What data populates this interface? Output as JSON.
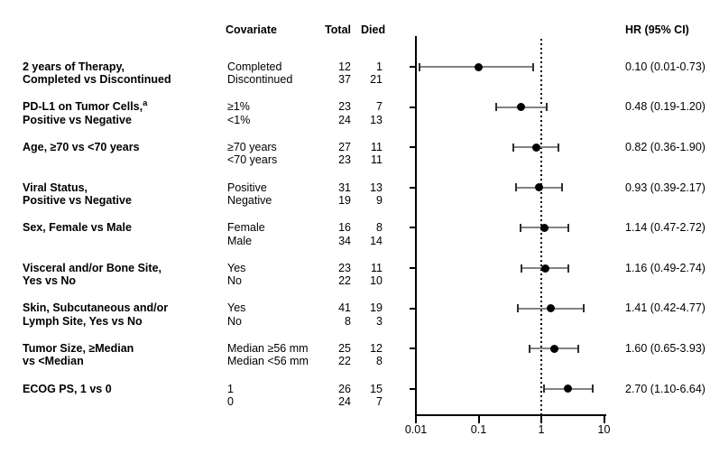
{
  "chart_data": {
    "type": "scatter",
    "subtype": "forest-plot",
    "title": "",
    "xlabel": "",
    "ylabel": "",
    "legend": null,
    "grid": false,
    "x_axis": {
      "scale": "log10",
      "range": [
        0.01,
        10
      ],
      "tick_labels": [
        "0.01",
        "0.1",
        "1",
        "10"
      ],
      "tick_values": [
        0.01,
        0.1,
        1,
        10
      ],
      "reference_line_value": 1
    },
    "headers": {
      "covariate": "Covariate",
      "total": "Total",
      "died": "Died",
      "hr": "HR (95% CI)"
    },
    "groups": [
      {
        "label_lines": [
          "2 years of Therapy,",
          "Completed vs Discontinued"
        ],
        "rows": [
          {
            "covariate": "Completed",
            "total": "12",
            "died": "1"
          },
          {
            "covariate": "Discontinued",
            "total": "37",
            "died": "21"
          }
        ],
        "hr": 0.1,
        "ci_low": 0.01,
        "ci_high": 0.73,
        "hr_text": "0.10 (0.01-0.73)"
      },
      {
        "label_lines": [
          "PD-L1 on Tumor Cells,",
          "Positive vs Negative"
        ],
        "label_sup": "a",
        "rows": [
          {
            "covariate": "≥1%",
            "total": "23",
            "died": "7"
          },
          {
            "covariate": "<1%",
            "total": "24",
            "died": "13"
          }
        ],
        "hr": 0.48,
        "ci_low": 0.19,
        "ci_high": 1.2,
        "hr_text": "0.48 (0.19-1.20)"
      },
      {
        "label_lines": [
          "Age, ≥70 vs <70 years"
        ],
        "rows": [
          {
            "covariate": "≥70 years",
            "total": "27",
            "died": "11"
          },
          {
            "covariate": "<70 years",
            "total": "23",
            "died": "11"
          }
        ],
        "hr": 0.82,
        "ci_low": 0.36,
        "ci_high": 1.9,
        "hr_text": "0.82 (0.36-1.90)"
      },
      {
        "label_lines": [
          "Viral Status,",
          "Positive vs Negative"
        ],
        "rows": [
          {
            "covariate": "Positive",
            "total": "31",
            "died": "13"
          },
          {
            "covariate": "Negative",
            "total": "19",
            "died": "9"
          }
        ],
        "hr": 0.93,
        "ci_low": 0.39,
        "ci_high": 2.17,
        "hr_text": "0.93 (0.39-2.17)"
      },
      {
        "label_lines": [
          "Sex, Female vs Male"
        ],
        "rows": [
          {
            "covariate": "Female",
            "total": "16",
            "died": "8"
          },
          {
            "covariate": "Male",
            "total": "34",
            "died": "14"
          }
        ],
        "hr": 1.14,
        "ci_low": 0.47,
        "ci_high": 2.72,
        "hr_text": "1.14 (0.47-2.72)"
      },
      {
        "label_lines": [
          "Visceral and/or Bone Site,",
          "Yes vs No"
        ],
        "rows": [
          {
            "covariate": "Yes",
            "total": "23",
            "died": "11"
          },
          {
            "covariate": "No",
            "total": "22",
            "died": "10"
          }
        ],
        "hr": 1.16,
        "ci_low": 0.49,
        "ci_high": 2.74,
        "hr_text": "1.16 (0.49-2.74)"
      },
      {
        "label_lines": [
          "Skin, Subcutaneous and/or",
          "Lymph Site, Yes vs No"
        ],
        "rows": [
          {
            "covariate": "Yes",
            "total": "41",
            "died": "19"
          },
          {
            "covariate": "No",
            "total": "8",
            "died": "3"
          }
        ],
        "hr": 1.41,
        "ci_low": 0.42,
        "ci_high": 4.77,
        "hr_text": "1.41 (0.42-4.77)"
      },
      {
        "label_lines": [
          "Tumor Size, ≥Median",
          "vs <Median"
        ],
        "rows": [
          {
            "covariate": "Median ≥56 mm",
            "total": "25",
            "died": "12"
          },
          {
            "covariate": "Median <56 mm",
            "total": "22",
            "died": "8"
          }
        ],
        "hr": 1.6,
        "ci_low": 0.65,
        "ci_high": 3.93,
        "hr_text": "1.60 (0.65-3.93)"
      },
      {
        "label_lines": [
          "ECOG PS, 1 vs 0"
        ],
        "rows": [
          {
            "covariate": "1",
            "total": "26",
            "died": "15"
          },
          {
            "covariate": "0",
            "total": "24",
            "died": "7"
          }
        ],
        "hr": 2.7,
        "ci_low": 1.1,
        "ci_high": 6.64,
        "hr_text": "2.70 (1.10-6.64)"
      }
    ],
    "colors": {
      "text": "#000000",
      "marker": "#000000",
      "ci_bar": "#828282",
      "ci_cap": "#2e2e2e",
      "axis": "#000000",
      "reference_line": "#000000",
      "background": "#ffffff"
    }
  }
}
